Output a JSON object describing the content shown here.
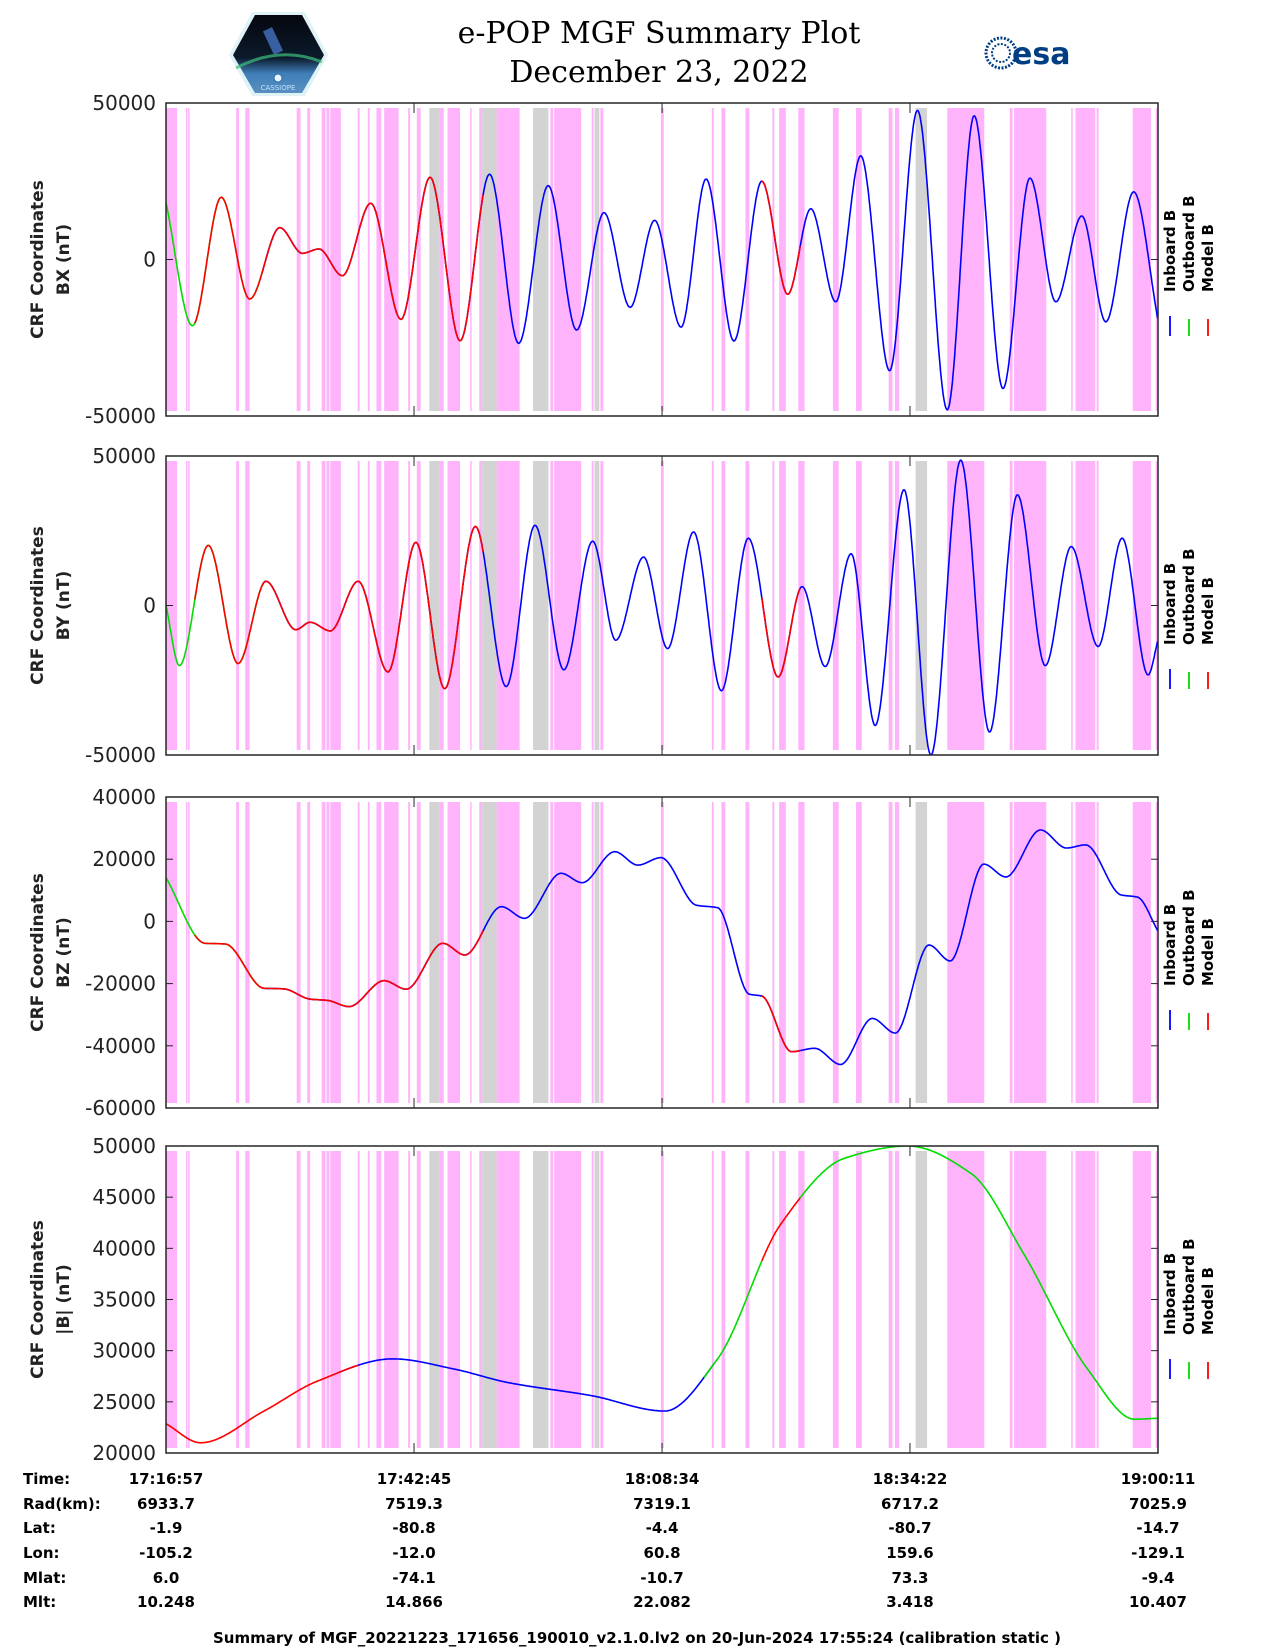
{
  "header": {
    "title": "e-POP MGF Summary Plot",
    "date": "December 23, 2022",
    "left_logo_text": "CASSIOPE",
    "right_logo_text": "esa"
  },
  "chart_data": {
    "type": "line",
    "title": "e-POP MGF Summary Plot",
    "subtitle": "December 23, 2022",
    "xlim": [
      0,
      103.23
    ],
    "x_tick_minutes": [
      0,
      25.81,
      51.62,
      77.42,
      103.23
    ],
    "legend": {
      "placement": "right",
      "entries": [
        "Inboard B",
        "Outboard B",
        "Model B"
      ]
    },
    "colors": {
      "inboard": "#0000ff",
      "outboard": "#00dd00",
      "model": "#ff0000",
      "pink_band": "#ffb3fb",
      "gray_band": "#d3d3d3"
    },
    "bands": {
      "pink": [
        [
          0,
          1.15
        ],
        [
          2.08,
          2.2
        ],
        [
          2.3,
          2.42
        ],
        [
          7.3,
          7.6
        ],
        [
          8.25,
          8.7
        ],
        [
          13.6,
          14.0
        ],
        [
          14.7,
          15.0
        ],
        [
          16.2,
          16.6
        ],
        [
          16.7,
          17.0
        ],
        [
          17.1,
          18.2
        ],
        [
          19.95,
          20.15
        ],
        [
          21.0,
          21.2
        ],
        [
          21.9,
          22.4
        ],
        [
          22.7,
          24.2
        ],
        [
          25.2,
          25.4
        ],
        [
          26.1,
          26.5
        ],
        [
          28.5,
          28.9
        ],
        [
          29.3,
          30.6
        ],
        [
          31.65,
          31.8
        ],
        [
          32.6,
          32.9
        ],
        [
          34.4,
          36.8
        ],
        [
          40.0,
          40.3
        ],
        [
          40.4,
          43.2
        ],
        [
          44.3,
          44.5
        ],
        [
          45.2,
          45.5
        ],
        [
          51.5,
          51.8
        ],
        [
          56.8,
          57.0
        ],
        [
          57.8,
          58.2
        ],
        [
          60.3,
          60.7
        ],
        [
          63.1,
          63.3
        ],
        [
          63.8,
          64.5
        ],
        [
          65.8,
          66.45
        ],
        [
          69.4,
          70.0
        ],
        [
          71.8,
          72.4
        ],
        [
          75.2,
          75.6
        ],
        [
          75.85,
          76.3
        ],
        [
          81.3,
          85.15
        ],
        [
          87.8,
          88.1
        ],
        [
          88.25,
          91.6
        ],
        [
          94.2,
          94.35
        ],
        [
          94.65,
          96.7
        ],
        [
          96.85,
          97.05
        ],
        [
          100.6,
          102.5
        ],
        [
          103.0,
          103.12
        ]
      ],
      "gray": [
        [
          27.4,
          28.5
        ],
        [
          32.9,
          34.4
        ],
        [
          38.2,
          39.8
        ],
        [
          44.6,
          45.1
        ],
        [
          78.0,
          79.2
        ]
      ]
    },
    "panels": [
      {
        "ylabel": [
          "CRF Coordinates",
          "BX (nT)"
        ],
        "ylim": [
          -50000,
          50000
        ],
        "yticks": [
          50000,
          0,
          -50000
        ],
        "ytick_labels": [
          "50000",
          "0",
          "-50000"
        ],
        "points": [
          [
            0,
            18150
          ],
          [
            2.75,
            -21150
          ],
          [
            5.75,
            19870
          ],
          [
            8.71,
            -12620
          ],
          [
            11.84,
            10160
          ],
          [
            14.18,
            1980
          ],
          [
            15.92,
            3350
          ],
          [
            18.35,
            -5180
          ],
          [
            21.31,
            17960
          ],
          [
            24.45,
            -19110
          ],
          [
            27.48,
            26260
          ],
          [
            30.61,
            -25940
          ],
          [
            33.67,
            27220
          ],
          [
            36.7,
            -26770
          ],
          [
            39.77,
            23580
          ],
          [
            42.73,
            -22520
          ],
          [
            45.58,
            14950
          ],
          [
            48.3,
            -15270
          ],
          [
            50.85,
            12500
          ],
          [
            53.6,
            -21600
          ],
          [
            56.2,
            25700
          ],
          [
            59.1,
            -26000
          ],
          [
            62.0,
            25000
          ],
          [
            64.7,
            -11100
          ],
          [
            67.1,
            16200
          ],
          [
            69.7,
            -13500
          ],
          [
            72.3,
            33100
          ],
          [
            75.3,
            -35500
          ],
          [
            78.2,
            47600
          ],
          [
            81.3,
            -48000
          ],
          [
            84.1,
            45900
          ],
          [
            87.1,
            -41200
          ],
          [
            89.9,
            26000
          ],
          [
            92.6,
            -13500
          ],
          [
            95.3,
            13900
          ],
          [
            97.8,
            -19900
          ],
          [
            100.7,
            21600
          ],
          [
            103.23,
            -19300
          ]
        ],
        "segments": [
          [
            "inboard",
            10,
            103.23
          ],
          [
            "outboard",
            0,
            10
          ],
          [
            "model",
            3,
            33
          ],
          [
            "model",
            62,
            66
          ]
        ]
      },
      {
        "ylabel": [
          "CRF Coordinates",
          "BY (nT)"
        ],
        "ylim": [
          -50000,
          50000
        ],
        "yticks": [
          50000,
          0,
          -50000
        ],
        "ytick_labels": [
          "50000",
          "0",
          "-50000"
        ],
        "points": [
          [
            0,
            0
          ],
          [
            1.4,
            -20100
          ],
          [
            4.4,
            20100
          ],
          [
            7.5,
            -19400
          ],
          [
            10.4,
            8100
          ],
          [
            13.5,
            -8100
          ],
          [
            15.0,
            -5600
          ],
          [
            17.1,
            -8500
          ],
          [
            20.0,
            8100
          ],
          [
            23.1,
            -22200
          ],
          [
            26.0,
            21100
          ],
          [
            29.0,
            -27800
          ],
          [
            32.2,
            26400
          ],
          [
            35.4,
            -27100
          ],
          [
            38.4,
            26800
          ],
          [
            41.4,
            -21500
          ],
          [
            44.4,
            21500
          ],
          [
            46.8,
            -11600
          ],
          [
            49.7,
            16200
          ],
          [
            52.2,
            -14400
          ],
          [
            54.9,
            24600
          ],
          [
            57.8,
            -28500
          ],
          [
            60.6,
            22500
          ],
          [
            63.7,
            -23900
          ],
          [
            66.2,
            6300
          ],
          [
            68.6,
            -20400
          ],
          [
            71.3,
            17300
          ],
          [
            73.8,
            -40100
          ],
          [
            76.8,
            38700
          ],
          [
            79.6,
            -50000
          ],
          [
            82.7,
            48600
          ],
          [
            85.7,
            -42300
          ],
          [
            88.6,
            37000
          ],
          [
            91.5,
            -20100
          ],
          [
            94.2,
            19700
          ],
          [
            97.0,
            -13700
          ],
          [
            99.5,
            22500
          ],
          [
            102.2,
            -23200
          ],
          [
            103.23,
            -11600
          ]
        ],
        "segments": [
          [
            "inboard",
            10,
            103.23
          ],
          [
            "outboard",
            0,
            10
          ],
          [
            "model",
            3,
            33
          ],
          [
            "model",
            62,
            66
          ]
        ]
      },
      {
        "ylabel": [
          "CRF Coordinates",
          "BZ (nT)"
        ],
        "ylim": [
          -60000,
          40000
        ],
        "yticks": [
          40000,
          20000,
          0,
          -20000,
          -40000,
          -60000
        ],
        "ytick_labels": [
          "40000",
          "20000",
          "0",
          "-20000",
          "-40000",
          "-60000"
        ],
        "points": [
          [
            0,
            14050
          ],
          [
            4.07,
            -7040
          ],
          [
            6.16,
            -7260
          ],
          [
            10.2,
            -21500
          ],
          [
            12.25,
            -21700
          ],
          [
            15.0,
            -25000
          ],
          [
            16.8,
            -25400
          ],
          [
            19.05,
            -27400
          ],
          [
            22.7,
            -19060
          ],
          [
            25.0,
            -21800
          ],
          [
            28.8,
            -7040
          ],
          [
            31.1,
            -10800
          ],
          [
            34.9,
            4740
          ],
          [
            37.3,
            1000
          ],
          [
            41.1,
            15470
          ],
          [
            43.3,
            12450
          ],
          [
            46.7,
            22410
          ],
          [
            49.1,
            18100
          ],
          [
            51.5,
            20500
          ],
          [
            55.2,
            5200
          ],
          [
            57.4,
            4400
          ],
          [
            60.7,
            -23400
          ],
          [
            62.0,
            -24000
          ],
          [
            65.1,
            -41900
          ],
          [
            67.5,
            -40800
          ],
          [
            70.2,
            -46000
          ],
          [
            73.5,
            -31200
          ],
          [
            75.9,
            -35900
          ],
          [
            79.4,
            -7600
          ],
          [
            81.6,
            -12700
          ],
          [
            85.1,
            18400
          ],
          [
            87.4,
            14300
          ],
          [
            91.0,
            29400
          ],
          [
            93.7,
            23600
          ],
          [
            95.7,
            24600
          ],
          [
            99.4,
            8500
          ],
          [
            101.1,
            7800
          ],
          [
            103.23,
            -3100
          ]
        ],
        "segments": [
          [
            "inboard",
            10,
            103.23
          ],
          [
            "outboard",
            0,
            10
          ],
          [
            "model",
            3,
            33
          ],
          [
            "model",
            62,
            66
          ]
        ]
      },
      {
        "ylabel": [
          "CRF Coordinates",
          "|B| (nT)"
        ],
        "ylim": [
          20000,
          50000
        ],
        "yticks": [
          50000,
          45000,
          40000,
          35000,
          30000,
          25000,
          20000
        ],
        "ytick_labels": [
          "50000",
          "45000",
          "40000",
          "35000",
          "30000",
          "25000",
          "20000"
        ],
        "points": [
          [
            0,
            22860
          ],
          [
            3.6,
            21000
          ],
          [
            10.2,
            24100
          ],
          [
            15.7,
            27000
          ],
          [
            23.6,
            29200
          ],
          [
            30.0,
            28200
          ],
          [
            35.5,
            26900
          ],
          [
            44.3,
            25600
          ],
          [
            51.9,
            24100
          ],
          [
            57.4,
            29200
          ],
          [
            64.0,
            42400
          ],
          [
            70.6,
            48800
          ],
          [
            77.2,
            50000
          ],
          [
            83.8,
            47300
          ],
          [
            89.3,
            39400
          ],
          [
            95.9,
            28200
          ],
          [
            100.8,
            23300
          ],
          [
            103.23,
            23400
          ]
        ],
        "segments": [
          [
            "inboard",
            18,
            57
          ],
          [
            "model",
            0,
            20
          ],
          [
            "model",
            62,
            66
          ],
          [
            "outboard",
            56,
            62
          ],
          [
            "outboard",
            66,
            103.23
          ]
        ]
      }
    ]
  },
  "table": {
    "labels": [
      "Time:",
      "Rad(km):",
      "Lat:",
      "Lon:",
      "Mlat:",
      "Mlt:"
    ],
    "columns": [
      [
        "17:16:57",
        "6933.7",
        "-1.9",
        "-105.2",
        "6.0",
        "10.248"
      ],
      [
        "17:42:45",
        "7519.3",
        "-80.8",
        "-12.0",
        "-74.1",
        "14.866"
      ],
      [
        "18:08:34",
        "7319.1",
        "-4.4",
        "60.8",
        "-10.7",
        "22.082"
      ],
      [
        "18:34:22",
        "6717.2",
        "-80.7",
        "159.6",
        "73.3",
        "3.418"
      ],
      [
        "19:00:11",
        "7025.9",
        "-14.7",
        "-129.1",
        "-9.4",
        "10.407"
      ]
    ]
  },
  "footer": "Summary of MGF_20221223_171656_190010_v2.1.0.lv2 on 20-Jun-2024 17:55:24 (calibration static )"
}
